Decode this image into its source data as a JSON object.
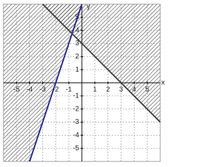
{
  "chart_data": {
    "type": "line",
    "xlim": [
      -6,
      6
    ],
    "ylim": [
      -6,
      6
    ],
    "xticks": [
      -5,
      -4,
      -3,
      -2,
      -1,
      1,
      2,
      3,
      4,
      5
    ],
    "yticks": [
      -5,
      -4,
      -3,
      -2,
      -1,
      1,
      2,
      3,
      4,
      5
    ],
    "xlabel": "x",
    "ylabel": "y",
    "grid": true,
    "series": [
      {
        "color": "#2a2a90",
        "x": [
          -4,
          0
        ],
        "values": [
          -6,
          6
        ],
        "shade": "left"
      },
      {
        "color": "#444444",
        "x": [
          -3,
          6
        ],
        "values": [
          6,
          -3
        ],
        "shade": "above"
      }
    ]
  }
}
